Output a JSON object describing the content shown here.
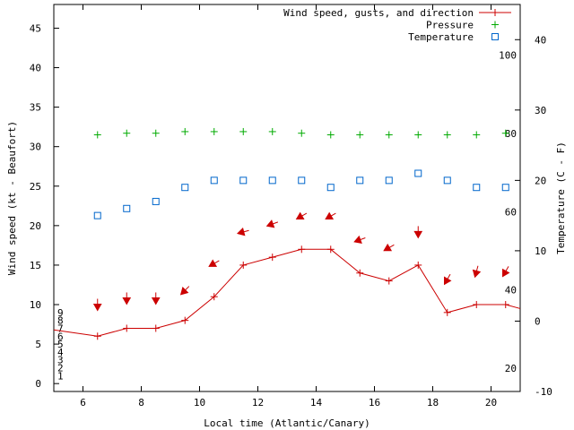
{
  "chart_data": {
    "type": "line",
    "xlabel": "Local time (Atlantic/Canary)",
    "ylabel": "Wind speed (kt - Beaufort)",
    "y2label": "Temperature (C - F)",
    "xlim": [
      5.0,
      21.0
    ],
    "ylim": [
      -1,
      48
    ],
    "y2lim": [
      -10,
      45
    ],
    "x_ticks": [
      6,
      8,
      10,
      12,
      14,
      16,
      18,
      20
    ],
    "y_ticks": [
      0,
      5,
      10,
      15,
      20,
      25,
      30,
      35,
      40,
      45
    ],
    "y2_ticks": [
      -10,
      0,
      10,
      20,
      30,
      40
    ],
    "beaufort_labels": [
      {
        "value": 1,
        "label": "1"
      },
      {
        "value": 2,
        "label": "2"
      },
      {
        "value": 3,
        "label": "3"
      },
      {
        "value": 4,
        "label": "4"
      },
      {
        "value": 5,
        "label": "5"
      },
      {
        "value": 6,
        "label": "6"
      },
      {
        "value": 7,
        "label": "7"
      },
      {
        "value": 8,
        "label": "8"
      },
      {
        "value": 9,
        "label": "9"
      }
    ],
    "fahrenheit_labels": [
      {
        "value": 20,
        "label": "20"
      },
      {
        "value": 40,
        "label": "40"
      },
      {
        "value": 60,
        "label": "60"
      },
      {
        "value": 80,
        "label": "80"
      },
      {
        "value": 100,
        "label": "100"
      }
    ],
    "legend_position": "top-right",
    "series": [
      {
        "name": "Wind speed, gusts, and direction",
        "color": "#cc0000",
        "marker": "plus",
        "line": true,
        "x": [
          5.0,
          6.5,
          7.5,
          8.5,
          9.5,
          10.5,
          11.5,
          12.5,
          13.5,
          14.5,
          15.5,
          16.5,
          17.5,
          18.5,
          19.5,
          20.5,
          21.0
        ],
        "values": [
          6.8,
          6.0,
          7.0,
          7.0,
          8.0,
          11.0,
          15.0,
          16.0,
          17.0,
          17.0,
          14.0,
          13.0,
          15.0,
          9.0,
          10.0,
          10.0,
          9.5
        ]
      },
      {
        "name": "Pressure",
        "color": "#00aa00",
        "marker": "plus",
        "line": false,
        "x": [
          6.5,
          7.5,
          8.5,
          9.5,
          10.5,
          11.5,
          12.5,
          13.5,
          14.5,
          15.5,
          16.5,
          17.5,
          18.5,
          19.5,
          20.5
        ],
        "values": [
          31.5,
          31.7,
          31.7,
          31.9,
          31.9,
          31.9,
          31.9,
          31.7,
          31.5,
          31.5,
          31.5,
          31.5,
          31.5,
          31.5,
          31.7
        ]
      },
      {
        "name": "Temperature",
        "color": "#0066cc",
        "marker": "square",
        "line": false,
        "x": [
          6.5,
          7.5,
          8.5,
          9.5,
          10.5,
          11.5,
          12.5,
          13.5,
          14.5,
          15.5,
          16.5,
          17.5,
          18.5,
          19.5,
          20.5
        ],
        "values": [
          15.0,
          16.0,
          17.0,
          19.0,
          20.0,
          20.0,
          20.0,
          20.0,
          19.0,
          20.0,
          20.0,
          21.0,
          20.0,
          19.0,
          19.0
        ]
      }
    ],
    "wind_direction_arrows": {
      "color": "#cc0000",
      "x": [
        6.5,
        7.5,
        8.5,
        9.5,
        10.5,
        11.5,
        12.5,
        13.5,
        14.5,
        15.5,
        16.5,
        17.5,
        18.5,
        19.5,
        20.5
      ],
      "level_kt": [
        10.0,
        10.8,
        10.8,
        11.8,
        15.2,
        19.2,
        20.2,
        21.2,
        21.2,
        18.2,
        17.2,
        19.2,
        13.2,
        14.2,
        14.2
      ],
      "direction_deg": [
        0,
        0,
        0,
        45,
        60,
        75,
        70,
        60,
        60,
        70,
        60,
        0,
        30,
        15,
        30
      ]
    }
  }
}
